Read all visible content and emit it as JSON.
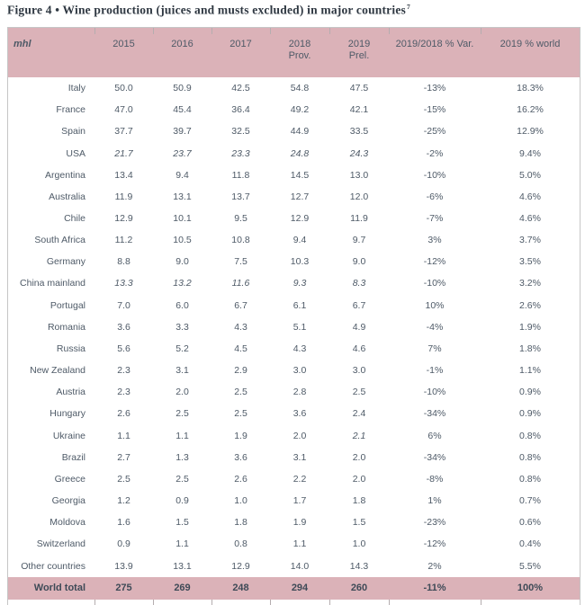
{
  "title": {
    "text": "Figure 4 • Wine production (juices and musts excluded) in major countries",
    "footnote_mark": "7"
  },
  "colors": {
    "header_bg": "#dbb2b8",
    "footer_bg": "#dbb2b8",
    "body_text": "#4e5a67",
    "title_text": "#2f3842",
    "border": "#c6c6c6"
  },
  "table": {
    "unit_label": "mhl",
    "columns": [
      {
        "label": "2015",
        "sub": ""
      },
      {
        "label": "2016",
        "sub": ""
      },
      {
        "label": "2017",
        "sub": ""
      },
      {
        "label": "2018",
        "sub": "Prov."
      },
      {
        "label": "2019",
        "sub": "Prel."
      },
      {
        "label": "2019/2018 % Var.",
        "sub": ""
      },
      {
        "label": "2019 % world",
        "sub": ""
      }
    ],
    "rows": [
      {
        "country": "Italy",
        "values": [
          "50.0",
          "50.9",
          "42.5",
          "54.8",
          "47.5"
        ],
        "var": "-13%",
        "world": "18.3%",
        "italic_cols": []
      },
      {
        "country": "France",
        "values": [
          "47.0",
          "45.4",
          "36.4",
          "49.2",
          "42.1"
        ],
        "var": "-15%",
        "world": "16.2%",
        "italic_cols": []
      },
      {
        "country": "Spain",
        "values": [
          "37.7",
          "39.7",
          "32.5",
          "44.9",
          "33.5"
        ],
        "var": "-25%",
        "world": "12.9%",
        "italic_cols": []
      },
      {
        "country": "USA",
        "values": [
          "21.7",
          "23.7",
          "23.3",
          "24.8",
          "24.3"
        ],
        "var": "-2%",
        "world": "9.4%",
        "italic_cols": [
          0,
          1,
          2,
          3,
          4
        ]
      },
      {
        "country": "Argentina",
        "values": [
          "13.4",
          "9.4",
          "11.8",
          "14.5",
          "13.0"
        ],
        "var": "-10%",
        "world": "5.0%",
        "italic_cols": []
      },
      {
        "country": "Australia",
        "values": [
          "11.9",
          "13.1",
          "13.7",
          "12.7",
          "12.0"
        ],
        "var": "-6%",
        "world": "4.6%",
        "italic_cols": []
      },
      {
        "country": "Chile",
        "values": [
          "12.9",
          "10.1",
          "9.5",
          "12.9",
          "11.9"
        ],
        "var": "-7%",
        "world": "4.6%",
        "italic_cols": []
      },
      {
        "country": "South Africa",
        "values": [
          "11.2",
          "10.5",
          "10.8",
          "9.4",
          "9.7"
        ],
        "var": "3%",
        "world": "3.7%",
        "italic_cols": []
      },
      {
        "country": "Germany",
        "values": [
          "8.8",
          "9.0",
          "7.5",
          "10.3",
          "9.0"
        ],
        "var": "-12%",
        "world": "3.5%",
        "italic_cols": []
      },
      {
        "country": "China mainland",
        "values": [
          "13.3",
          "13.2",
          "11.6",
          "9.3",
          "8.3"
        ],
        "var": "-10%",
        "world": "3.2%",
        "italic_cols": [
          0,
          1,
          2,
          3,
          4
        ]
      },
      {
        "country": "Portugal",
        "values": [
          "7.0",
          "6.0",
          "6.7",
          "6.1",
          "6.7"
        ],
        "var": "10%",
        "world": "2.6%",
        "italic_cols": []
      },
      {
        "country": "Romania",
        "values": [
          "3.6",
          "3.3",
          "4.3",
          "5.1",
          "4.9"
        ],
        "var": "-4%",
        "world": "1.9%",
        "italic_cols": []
      },
      {
        "country": "Russia",
        "values": [
          "5.6",
          "5.2",
          "4.5",
          "4.3",
          "4.6"
        ],
        "var": "7%",
        "world": "1.8%",
        "italic_cols": []
      },
      {
        "country": "New Zealand",
        "values": [
          "2.3",
          "3.1",
          "2.9",
          "3.0",
          "3.0"
        ],
        "var": "-1%",
        "world": "1.1%",
        "italic_cols": []
      },
      {
        "country": "Austria",
        "values": [
          "2.3",
          "2.0",
          "2.5",
          "2.8",
          "2.5"
        ],
        "var": "-10%",
        "world": "0.9%",
        "italic_cols": []
      },
      {
        "country": "Hungary",
        "values": [
          "2.6",
          "2.5",
          "2.5",
          "3.6",
          "2.4"
        ],
        "var": "-34%",
        "world": "0.9%",
        "italic_cols": []
      },
      {
        "country": "Ukraine",
        "values": [
          "1.1",
          "1.1",
          "1.9",
          "2.0",
          "2.1"
        ],
        "var": "6%",
        "world": "0.8%",
        "italic_cols": [
          4
        ]
      },
      {
        "country": "Brazil",
        "values": [
          "2.7",
          "1.3",
          "3.6",
          "3.1",
          "2.0"
        ],
        "var": "-34%",
        "world": "0.8%",
        "italic_cols": []
      },
      {
        "country": "Greece",
        "values": [
          "2.5",
          "2.5",
          "2.6",
          "2.2",
          "2.0"
        ],
        "var": "-8%",
        "world": "0.8%",
        "italic_cols": []
      },
      {
        "country": "Georgia",
        "values": [
          "1.2",
          "0.9",
          "1.0",
          "1.7",
          "1.8"
        ],
        "var": "1%",
        "world": "0.7%",
        "italic_cols": []
      },
      {
        "country": "Moldova",
        "values": [
          "1.6",
          "1.5",
          "1.8",
          "1.9",
          "1.5"
        ],
        "var": "-23%",
        "world": "0.6%",
        "italic_cols": []
      },
      {
        "country": "Switzerland",
        "values": [
          "0.9",
          "1.1",
          "0.8",
          "1.1",
          "1.0"
        ],
        "var": "-12%",
        "world": "0.4%",
        "italic_cols": []
      },
      {
        "country": "Other countries",
        "values": [
          "13.9",
          "13.1",
          "12.9",
          "14.0",
          "14.3"
        ],
        "var": "2%",
        "world": "5.5%",
        "italic_cols": []
      }
    ],
    "footer": {
      "label": "World total",
      "values": [
        "275",
        "269",
        "248",
        "294",
        "260"
      ],
      "var": "-11%",
      "world": "100%"
    }
  }
}
